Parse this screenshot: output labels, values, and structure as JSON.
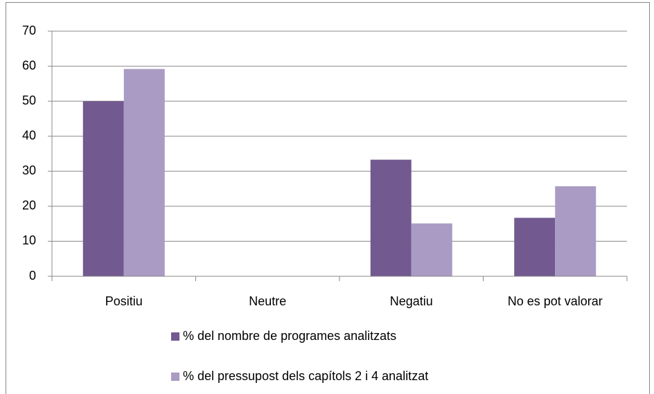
{
  "chart_data": {
    "type": "bar",
    "categories": [
      "Positiu",
      "Neutre",
      "Negatiu",
      "No es pot valorar"
    ],
    "series": [
      {
        "name": "% del nombre de programes analitzats",
        "color": "#72598f",
        "values": [
          50,
          0,
          33.3,
          16.7
        ]
      },
      {
        "name": "% del pressupost dels capítols 2 i 4 analitzat",
        "color": "#a99bc3",
        "values": [
          59.2,
          0,
          15.1,
          25.7
        ]
      }
    ],
    "ylim": [
      0,
      70
    ],
    "yticks": [
      0,
      10,
      20,
      30,
      40,
      50,
      60,
      70
    ],
    "grid": true,
    "legend": "bottom"
  }
}
